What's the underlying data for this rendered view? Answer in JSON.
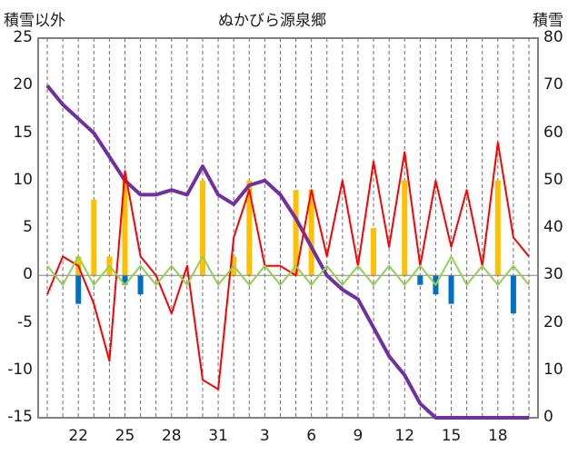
{
  "chart_data": {
    "type": "line",
    "title": "ぬかびら源泉郷",
    "ylabel_left": "積雪以外",
    "ylabel_right": "積雪",
    "ylim_left": [
      -15,
      25
    ],
    "ylim_right": [
      0,
      80
    ],
    "y_ticks_left": [
      "25",
      "20",
      "15",
      "10",
      "5",
      "0",
      "-5",
      "-10",
      "-15"
    ],
    "y_ticks_right": [
      "80",
      "70",
      "60",
      "50",
      "40",
      "30",
      "20",
      "10",
      "0"
    ],
    "x_tick_labels": [
      "22",
      "25",
      "28",
      "31",
      "3",
      "6",
      "9",
      "12",
      "15",
      "18"
    ],
    "x_days": [
      "20",
      "21",
      "22",
      "23",
      "24",
      "25",
      "26",
      "27",
      "28",
      "29",
      "30",
      "31",
      "1",
      "2",
      "3",
      "4",
      "5",
      "6",
      "7",
      "8",
      "9",
      "10",
      "11",
      "12",
      "13",
      "14",
      "15",
      "16",
      "17",
      "18",
      "19",
      "20"
    ],
    "grid": "vertical-dashed",
    "series": [
      {
        "axis": "right",
        "color": "#7030a0",
        "values": [
          70,
          66,
          63,
          60,
          55,
          50,
          47,
          47,
          48,
          47,
          53,
          47,
          45,
          49,
          50,
          47,
          42,
          36,
          30,
          27,
          25,
          19,
          13,
          9,
          3,
          0,
          0,
          0,
          0,
          0,
          0,
          0
        ]
      },
      {
        "axis": "left",
        "color": "#ff0000",
        "values": [
          -2,
          2,
          1,
          -3,
          -9,
          11,
          2,
          0,
          -4,
          1,
          -11,
          -12,
          4,
          9,
          1,
          1,
          0,
          9,
          2,
          10,
          1,
          12,
          3,
          13,
          1,
          10,
          3,
          9,
          1,
          14,
          4,
          2
        ]
      },
      {
        "axis": "left",
        "color": "#ffc000",
        "values": [
          0,
          0,
          2,
          8,
          2,
          10,
          0,
          0,
          0,
          0,
          10,
          0,
          2,
          10,
          0,
          0,
          9,
          9,
          0,
          0,
          0,
          5,
          0,
          10,
          0,
          0,
          0,
          0,
          0,
          10,
          0,
          0
        ]
      },
      {
        "axis": "left",
        "color": "#0070c0",
        "values": [
          0,
          0,
          -3,
          0,
          0,
          -1,
          -2,
          0,
          0,
          0,
          0,
          0,
          0,
          0,
          0,
          0,
          0,
          0,
          0,
          0,
          0,
          0,
          0,
          0,
          -1,
          -2,
          -3,
          0,
          0,
          0,
          -4,
          0
        ]
      },
      {
        "axis": "left",
        "color": "#92d050",
        "values": [
          1,
          -1,
          2,
          -1,
          1,
          -1,
          1,
          -1,
          1,
          -1,
          2,
          -1,
          1,
          -1,
          1,
          -1,
          1,
          -1,
          1,
          -1,
          1,
          -1,
          1,
          -1,
          1,
          -1,
          2,
          -1,
          1,
          -1,
          1,
          -1
        ]
      }
    ]
  }
}
